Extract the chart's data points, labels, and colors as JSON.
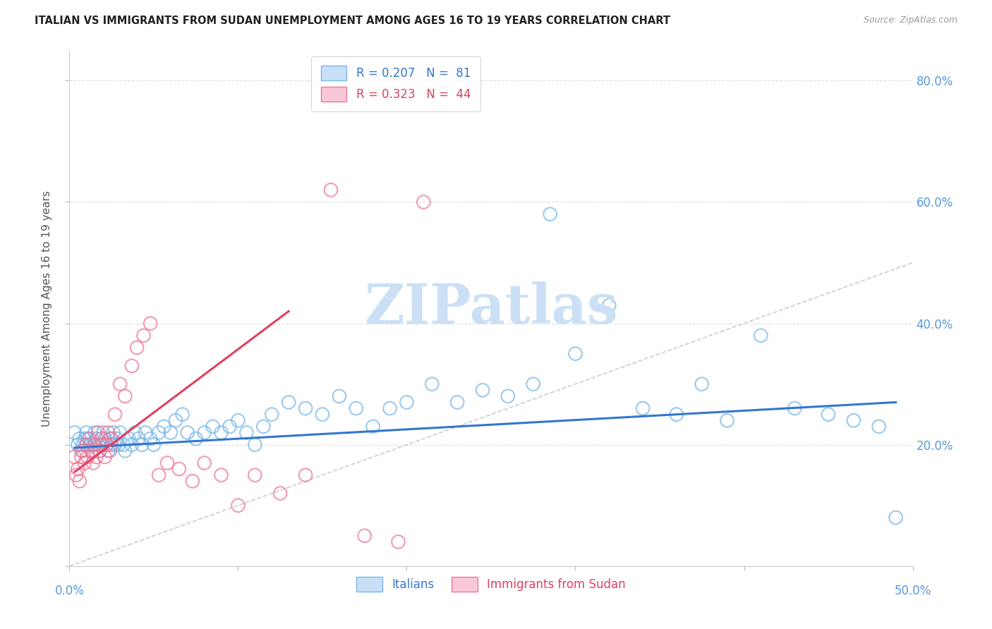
{
  "title": "ITALIAN VS IMMIGRANTS FROM SUDAN UNEMPLOYMENT AMONG AGES 16 TO 19 YEARS CORRELATION CHART",
  "source": "Source: ZipAtlas.com",
  "ylabel": "Unemployment Among Ages 16 to 19 years",
  "xlim": [
    0.0,
    0.5
  ],
  "ylim": [
    0.0,
    0.85
  ],
  "yticks": [
    0.0,
    0.2,
    0.4,
    0.6,
    0.8
  ],
  "ytick_labels": [
    "",
    "20.0%",
    "40.0%",
    "60.0%",
    "80.0%"
  ],
  "xticks": [
    0.0,
    0.1,
    0.2,
    0.3,
    0.4,
    0.5
  ],
  "watermark": "ZIPatlas",
  "blue_color": "#7ab8e8",
  "pink_color": "#f07898",
  "tick_label_color": "#5599dd",
  "watermark_color": "#cce0f5",
  "italian_x": [
    0.003,
    0.005,
    0.006,
    0.007,
    0.008,
    0.009,
    0.01,
    0.01,
    0.011,
    0.012,
    0.013,
    0.014,
    0.015,
    0.015,
    0.016,
    0.017,
    0.018,
    0.019,
    0.02,
    0.021,
    0.022,
    0.023,
    0.024,
    0.025,
    0.026,
    0.027,
    0.028,
    0.029,
    0.03,
    0.032,
    0.033,
    0.035,
    0.037,
    0.039,
    0.041,
    0.043,
    0.045,
    0.048,
    0.05,
    0.053,
    0.056,
    0.06,
    0.063,
    0.067,
    0.07,
    0.075,
    0.08,
    0.085,
    0.09,
    0.095,
    0.1,
    0.105,
    0.11,
    0.115,
    0.12,
    0.13,
    0.14,
    0.15,
    0.16,
    0.17,
    0.18,
    0.19,
    0.2,
    0.215,
    0.23,
    0.245,
    0.26,
    0.275,
    0.285,
    0.3,
    0.32,
    0.34,
    0.36,
    0.375,
    0.39,
    0.41,
    0.43,
    0.45,
    0.465,
    0.48,
    0.49
  ],
  "italian_y": [
    0.22,
    0.2,
    0.21,
    0.19,
    0.2,
    0.21,
    0.2,
    0.22,
    0.21,
    0.2,
    0.19,
    0.2,
    0.22,
    0.2,
    0.21,
    0.2,
    0.19,
    0.2,
    0.22,
    0.21,
    0.2,
    0.19,
    0.21,
    0.2,
    0.22,
    0.2,
    0.21,
    0.2,
    0.22,
    0.2,
    0.19,
    0.21,
    0.2,
    0.22,
    0.21,
    0.2,
    0.22,
    0.21,
    0.2,
    0.22,
    0.23,
    0.22,
    0.24,
    0.25,
    0.22,
    0.21,
    0.22,
    0.23,
    0.22,
    0.23,
    0.24,
    0.22,
    0.2,
    0.23,
    0.25,
    0.27,
    0.26,
    0.25,
    0.28,
    0.26,
    0.23,
    0.26,
    0.27,
    0.3,
    0.27,
    0.29,
    0.28,
    0.3,
    0.58,
    0.35,
    0.43,
    0.26,
    0.25,
    0.3,
    0.24,
    0.38,
    0.26,
    0.25,
    0.24,
    0.23,
    0.08
  ],
  "sudan_x": [
    0.003,
    0.004,
    0.005,
    0.006,
    0.007,
    0.008,
    0.009,
    0.01,
    0.011,
    0.012,
    0.013,
    0.014,
    0.015,
    0.016,
    0.017,
    0.018,
    0.019,
    0.02,
    0.021,
    0.022,
    0.023,
    0.024,
    0.025,
    0.027,
    0.03,
    0.033,
    0.037,
    0.04,
    0.044,
    0.048,
    0.053,
    0.058,
    0.065,
    0.073,
    0.08,
    0.09,
    0.1,
    0.11,
    0.125,
    0.14,
    0.155,
    0.175,
    0.195,
    0.21
  ],
  "sudan_y": [
    0.18,
    0.15,
    0.16,
    0.14,
    0.18,
    0.19,
    0.17,
    0.2,
    0.18,
    0.21,
    0.19,
    0.17,
    0.2,
    0.18,
    0.22,
    0.19,
    0.21,
    0.2,
    0.18,
    0.2,
    0.22,
    0.19,
    0.21,
    0.25,
    0.3,
    0.28,
    0.33,
    0.36,
    0.38,
    0.4,
    0.15,
    0.17,
    0.16,
    0.14,
    0.17,
    0.15,
    0.1,
    0.15,
    0.12,
    0.15,
    0.62,
    0.05,
    0.04,
    0.6
  ],
  "sudan_y_line_x": [
    0.003,
    0.13
  ],
  "sudan_y_line_y": [
    0.155,
    0.42
  ],
  "italian_line_x": [
    0.003,
    0.49
  ],
  "italian_line_y": [
    0.195,
    0.27
  ]
}
